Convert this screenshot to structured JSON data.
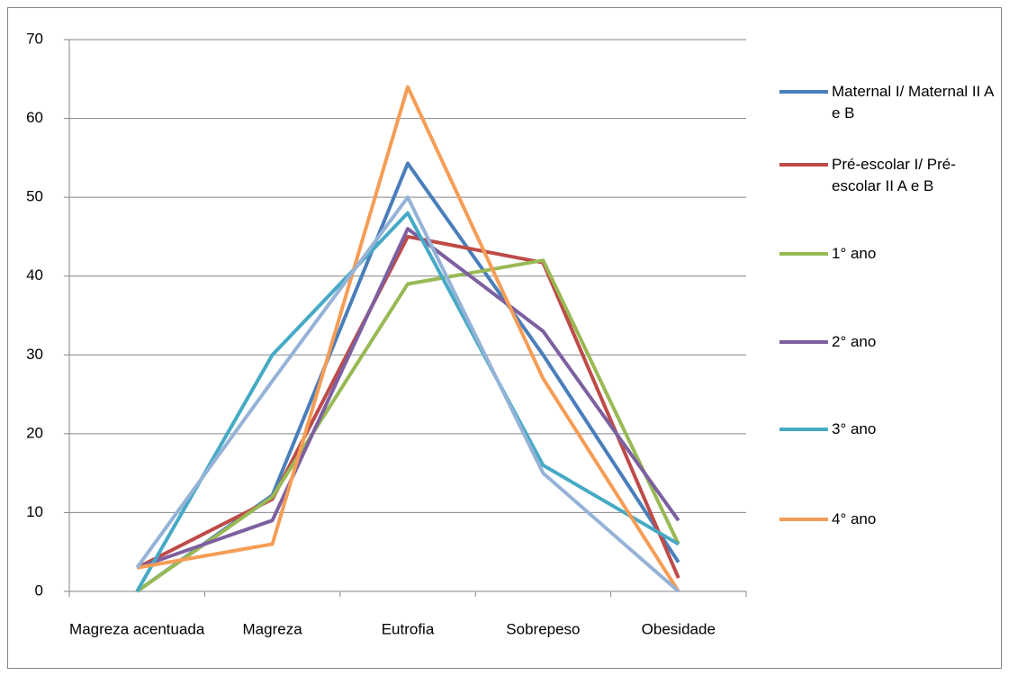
{
  "chart_data": {
    "type": "line",
    "categories": [
      "Magreza acentuada",
      "Magreza",
      "Eutrofia",
      "Sobrepeso",
      "Obesidade"
    ],
    "series": [
      {
        "name": "Maternal I/ Maternal II A e B",
        "color": "#4a7ebb",
        "values": [
          0,
          12.2,
          54.3,
          30,
          3.7
        ]
      },
      {
        "name": "Pré-escolar I/ Pré-escolar II A e B",
        "color": "#be4b48",
        "values": [
          3,
          11.7,
          45,
          41.7,
          1.7
        ]
      },
      {
        "name": "1° ano",
        "color": "#98b954",
        "values": [
          0,
          12,
          39,
          42,
          6
        ]
      },
      {
        "name": "2° ano",
        "color": "#7d60a0",
        "values": [
          3,
          9,
          46,
          33,
          9
        ]
      },
      {
        "name": "3° ano",
        "color": "#46aac5",
        "values": [
          0,
          30,
          48,
          16,
          6
        ]
      },
      {
        "name": "4° ano",
        "color": "#f59d56",
        "values": [
          3,
          6,
          64,
          27,
          0
        ]
      },
      {
        "color": "#95b3d7",
        "values": [
          3,
          26.7,
          50,
          15,
          0
        ]
      }
    ],
    "ylim": [
      0,
      70
    ],
    "yticks": [
      0,
      10,
      20,
      30,
      40,
      50,
      60,
      70
    ],
    "grid": true
  }
}
